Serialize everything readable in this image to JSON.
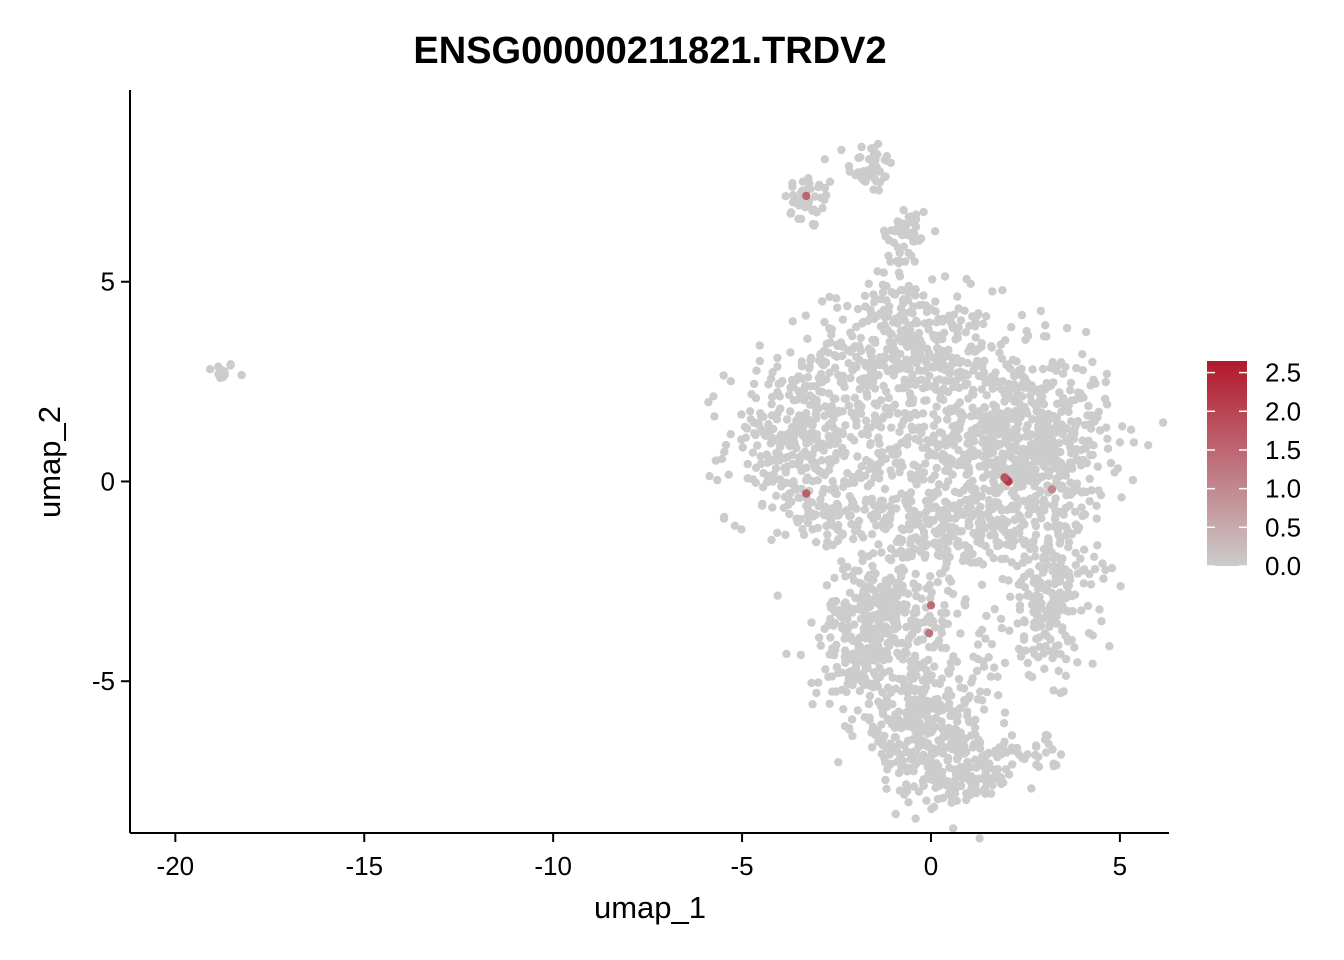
{
  "chart_data": {
    "type": "scatter",
    "title": "ENSG00000211821.TRDV2",
    "xlabel": "umap_1",
    "ylabel": "umap_2",
    "xlim": [
      -21.2,
      6.3
    ],
    "ylim": [
      -8.8,
      9.8
    ],
    "x_ticks": [
      -20,
      -15,
      -10,
      -5,
      0,
      5
    ],
    "x_tick_labels": [
      "-20",
      "-15",
      "-10",
      "-5",
      "0",
      "5"
    ],
    "y_ticks": [
      -5,
      0,
      5
    ],
    "y_tick_labels": [
      "-5",
      "0",
      "5"
    ],
    "grid": false,
    "point_color_low": "#CCCCCC",
    "point_color_high": "#B2182B",
    "color_scale": {
      "min": 0.0,
      "max": 2.65,
      "ticks": [
        0.0,
        0.5,
        1.0,
        1.5,
        2.0,
        2.5
      ],
      "tick_labels": [
        "0.0",
        "0.5",
        "1.0",
        "1.5",
        "2.0",
        "2.5"
      ],
      "position": "right"
    },
    "clusters": [
      {
        "name": "outlier",
        "cx": -18.8,
        "cy": 2.75,
        "sx": 0.2,
        "sy": 0.12,
        "n": 14
      },
      {
        "name": "top-left-small",
        "cx": -3.2,
        "cy": 7.0,
        "sx": 0.35,
        "sy": 0.35,
        "n": 40
      },
      {
        "name": "top-peak",
        "cx": -1.6,
        "cy": 7.9,
        "sx": 0.3,
        "sy": 0.35,
        "n": 45
      },
      {
        "name": "upper-stalk",
        "cx": -0.7,
        "cy": 6.2,
        "sx": 0.35,
        "sy": 0.4,
        "n": 45
      },
      {
        "name": "stalk-link",
        "cx": -1.0,
        "cy": 4.8,
        "sx": 0.3,
        "sy": 0.5,
        "n": 25
      },
      {
        "name": "upper-mass",
        "cx": -0.7,
        "cy": 3.2,
        "sx": 1.2,
        "sy": 0.8,
        "n": 380
      },
      {
        "name": "left-lobe",
        "cx": -3.6,
        "cy": 1.0,
        "sx": 0.9,
        "sy": 1.0,
        "n": 300
      },
      {
        "name": "left-bottom",
        "cx": -2.6,
        "cy": -0.8,
        "sx": 0.6,
        "sy": 0.5,
        "n": 60
      },
      {
        "name": "center-scatter",
        "cx": -1.2,
        "cy": 0.2,
        "sx": 1.0,
        "sy": 1.1,
        "n": 180
      },
      {
        "name": "right-mass",
        "cx": 2.3,
        "cy": 1.0,
        "sx": 1.2,
        "sy": 1.1,
        "n": 750
      },
      {
        "name": "middle-neck",
        "cx": 0.8,
        "cy": -1.3,
        "sx": 1.0,
        "sy": 0.6,
        "n": 200
      },
      {
        "name": "lower-left",
        "cx": -1.3,
        "cy": -3.3,
        "sx": 0.8,
        "sy": 0.6,
        "n": 240
      },
      {
        "name": "lower-left-2",
        "cx": -1.9,
        "cy": -4.6,
        "sx": 0.6,
        "sy": 0.6,
        "n": 120
      },
      {
        "name": "right-lower",
        "cx": 3.2,
        "cy": -2.8,
        "sx": 0.6,
        "sy": 1.0,
        "n": 220
      },
      {
        "name": "bottom",
        "cx": -0.2,
        "cy": -6.2,
        "sx": 0.9,
        "sy": 0.8,
        "n": 300
      },
      {
        "name": "bottom-tip",
        "cx": 0.8,
        "cy": -7.4,
        "sx": 0.7,
        "sy": 0.35,
        "n": 110
      },
      {
        "name": "bottom-tail",
        "cx": 2.4,
        "cy": -6.9,
        "sx": 0.7,
        "sy": 0.3,
        "n": 40
      },
      {
        "name": "sparse-link",
        "cx": 0.6,
        "cy": -4.2,
        "sx": 1.1,
        "sy": 0.9,
        "n": 60
      }
    ],
    "highlighted_cells": [
      {
        "x": 2.0,
        "y": 0.05,
        "value": 2.6
      },
      {
        "x": 2.05,
        "y": 0.0,
        "value": 2.2
      },
      {
        "x": 1.95,
        "y": 0.1,
        "value": 1.8
      },
      {
        "x": -3.3,
        "y": 7.15,
        "value": 1.5
      },
      {
        "x": -3.3,
        "y": -0.3,
        "value": 1.6
      },
      {
        "x": 0.0,
        "y": -3.1,
        "value": 1.4
      },
      {
        "x": -0.05,
        "y": -3.8,
        "value": 1.3
      },
      {
        "x": 3.2,
        "y": -0.2,
        "value": 1.0
      }
    ]
  }
}
